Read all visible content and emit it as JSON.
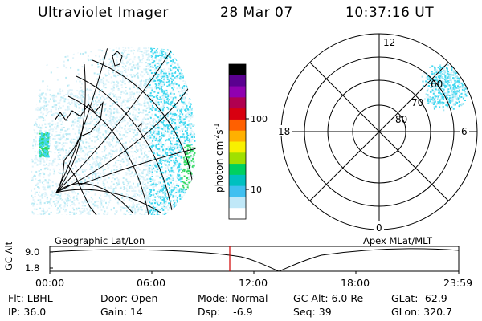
{
  "header": {
    "instrument": "Ultraviolet Imager",
    "date": "28 Mar 07",
    "time": "10:37:16 UT"
  },
  "colorbar": {
    "label": "photon cm",
    "label_exp1": "-2",
    "label_s": "s",
    "label_exp2": "-1",
    "tick_100": "100",
    "tick_10": "10",
    "colors": [
      "#000000",
      "#5a0090",
      "#9000b0",
      "#b00050",
      "#d80010",
      "#ff6000",
      "#ffb000",
      "#f8f000",
      "#a0e000",
      "#00d060",
      "#00c0c0",
      "#40c0f0",
      "#c0e8f8",
      "#ffffff"
    ]
  },
  "geo_panel": {
    "label": "Geographic Lat/Lon"
  },
  "polar_panel": {
    "label": "Apex MLat/MLT",
    "mlt_12": "12",
    "mlt_18": "18",
    "mlt_6": "6",
    "mlt_0": "0",
    "lat_80": "80",
    "lat_70": "70",
    "lat_60": "60"
  },
  "altitude_plot": {
    "axis_label": "GC Alt",
    "tick_high": "9.0",
    "tick_low": "1.8",
    "x_ticks": [
      "00:00",
      "06:00",
      "12:00",
      "18:00",
      "23:59"
    ],
    "current_time_color": "#d00000"
  },
  "status": {
    "filter": "Flt: LBHL",
    "ip": "IP: 36.0",
    "door": "Door: Open",
    "gain": "Gain: 14",
    "mode": "Mode: Normal",
    "dsp": "Dsp:    -6.9",
    "gc_alt": "GC Alt: 6.0 Re",
    "seq": "Seq: 39",
    "glat": "GLat: -62.9",
    "glon": "GLon: 320.7"
  }
}
